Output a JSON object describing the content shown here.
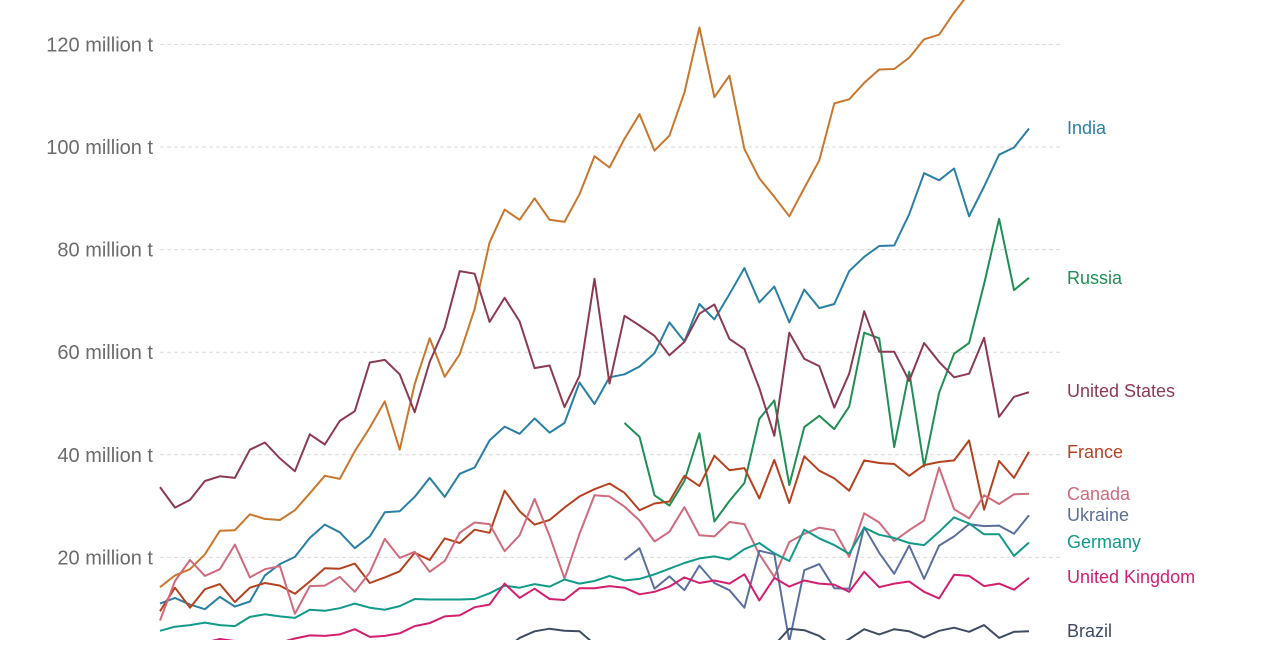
{
  "chart_data": {
    "type": "line",
    "x_range": [
      1961,
      2021
    ],
    "ylim": [
      0,
      125
    ],
    "y_ticks": [
      {
        "value": 20,
        "label": "20 million t"
      },
      {
        "value": 40,
        "label": "40 million t"
      },
      {
        "value": 60,
        "label": "60 million t"
      },
      {
        "value": 80,
        "label": "80 million t"
      },
      {
        "value": 100,
        "label": "100 million t"
      },
      {
        "value": 120,
        "label": "120 million t"
      }
    ],
    "grid": true,
    "series": [
      {
        "key": "china",
        "color": "#c9772c",
        "start": 1961,
        "values": [
          14.2,
          16.5,
          17.7,
          20.6,
          25.2,
          25.3,
          28.4,
          27.5,
          27.3,
          29.2,
          32.5,
          35.9,
          35.3,
          40.7,
          45.3,
          50.4,
          41.0,
          53.8,
          62.7,
          55.2,
          59.6,
          68.4,
          81.4,
          87.8,
          85.8,
          90.0,
          85.8,
          85.4,
          90.8,
          98.2,
          96.0,
          101.6,
          106.4,
          99.3,
          102.2,
          110.6,
          123.3,
          109.7,
          113.9,
          99.6,
          93.9,
          90.3,
          86.5,
          92.0,
          97.4,
          108.5,
          109.3,
          112.5,
          115.1,
          115.2,
          117.4,
          121.0,
          121.9,
          126.2,
          130.0,
          133.3,
          134.3,
          131.4,
          133.6,
          134.3,
          137.0
        ]
      },
      {
        "key": "india",
        "name": "India",
        "color": "#2a7fa5",
        "start": 1961,
        "values": [
          11.0,
          12.1,
          10.8,
          9.9,
          12.3,
          10.4,
          11.4,
          16.5,
          18.7,
          20.1,
          23.8,
          26.4,
          24.9,
          21.8,
          24.1,
          28.8,
          29.0,
          31.8,
          35.5,
          31.8,
          36.3,
          37.5,
          42.8,
          45.5,
          44.1,
          47.1,
          44.3,
          46.2,
          54.1,
          49.9,
          55.1,
          55.7,
          57.2,
          59.8,
          65.8,
          62.1,
          69.4,
          66.4,
          71.3,
          76.4,
          69.7,
          72.8,
          65.8,
          72.2,
          68.6,
          69.4,
          75.8,
          78.6,
          80.7,
          80.8,
          86.9,
          94.9,
          93.5,
          95.8,
          86.5,
          92.3,
          98.5,
          99.9,
          103.6
        ]
      },
      {
        "key": "russia",
        "name": "Russia",
        "color": "#1f8f54",
        "start": 1992,
        "values": [
          46.2,
          43.5,
          32.1,
          30.1,
          34.9,
          44.2,
          27.0,
          31.0,
          34.5,
          47.0,
          50.6,
          34.1,
          45.4,
          47.6,
          45.0,
          49.4,
          63.8,
          62.7,
          41.5,
          56.2,
          37.7,
          52.1,
          59.7,
          61.8,
          73.3,
          86.0,
          72.1,
          74.5
        ]
      },
      {
        "key": "usa",
        "name": "United States",
        "color": "#8b3a52",
        "start": 1961,
        "values": [
          33.7,
          29.7,
          31.2,
          34.9,
          35.8,
          35.5,
          41.0,
          42.4,
          39.3,
          36.8,
          44.0,
          42.0,
          46.6,
          48.5,
          58.0,
          58.5,
          55.7,
          48.3,
          58.1,
          64.8,
          75.8,
          75.3,
          65.9,
          70.6,
          66.0,
          56.9,
          57.4,
          49.3,
          55.4,
          74.3,
          53.9,
          67.1,
          65.2,
          63.2,
          59.4,
          62.0,
          67.5,
          69.3,
          62.6,
          60.6,
          53.0,
          43.7,
          63.8,
          58.7,
          57.3,
          49.2,
          55.8,
          68.0,
          60.1,
          60.1,
          54.4,
          61.8,
          58.1,
          55.1,
          55.8,
          62.8,
          47.4,
          51.3,
          52.2
        ]
      },
      {
        "key": "france",
        "name": "France",
        "color": "#b5421e",
        "start": 1961,
        "values": [
          9.5,
          14.1,
          10.2,
          13.8,
          14.8,
          11.3,
          14.1,
          15.0,
          14.5,
          12.9,
          15.3,
          17.9,
          17.8,
          18.8,
          15.0,
          16.1,
          17.3,
          20.9,
          19.5,
          23.7,
          22.8,
          25.4,
          24.8,
          33.0,
          29.0,
          26.4,
          27.3,
          29.7,
          31.9,
          33.3,
          34.4,
          32.6,
          29.2,
          30.5,
          30.9,
          35.9,
          33.9,
          39.8,
          37.0,
          37.4,
          31.5,
          39.0,
          30.6,
          39.7,
          36.9,
          35.4,
          33.0,
          38.9,
          38.4,
          38.2,
          35.9,
          38.0,
          38.6,
          38.9,
          42.8,
          29.3,
          38.8,
          35.5,
          40.6
        ]
      },
      {
        "key": "canada",
        "name": "Canada",
        "color": "#d06a7d",
        "start": 1961,
        "values": [
          7.7,
          15.4,
          19.5,
          16.4,
          17.7,
          22.5,
          16.1,
          17.7,
          18.3,
          9.0,
          14.4,
          14.5,
          16.2,
          13.3,
          17.1,
          23.6,
          19.9,
          21.1,
          17.2,
          19.3,
          24.8,
          26.8,
          26.5,
          21.2,
          24.3,
          31.4,
          24.2,
          15.9,
          24.6,
          32.1,
          31.9,
          29.9,
          27.2,
          23.1,
          25.0,
          29.8,
          24.3,
          24.1,
          26.9,
          26.5,
          20.6,
          16.2,
          23.0,
          24.6,
          25.8,
          25.3,
          20.1,
          28.6,
          26.8,
          23.2,
          25.3,
          27.2,
          37.5,
          29.4,
          27.6,
          32.1,
          30.4,
          32.3,
          32.4
        ]
      },
      {
        "key": "ukraine",
        "name": "Ukraine",
        "color": "#5b6f9e",
        "start": 1992,
        "values": [
          19.5,
          21.8,
          13.9,
          16.3,
          13.6,
          18.4,
          15.0,
          13.6,
          10.2,
          21.3,
          20.6,
          3.6,
          17.5,
          18.7,
          14.0,
          13.9,
          25.9,
          20.9,
          16.8,
          22.3,
          15.8,
          22.3,
          24.1,
          26.5,
          26.1,
          26.2,
          24.6,
          28.2
        ]
      },
      {
        "key": "germany",
        "name": "Germany",
        "color": "#119a8a",
        "start": 1961,
        "values": [
          5.7,
          6.5,
          6.8,
          7.3,
          6.8,
          6.6,
          8.4,
          8.9,
          8.5,
          8.2,
          9.8,
          9.6,
          10.1,
          11.0,
          10.2,
          9.8,
          10.5,
          11.9,
          11.8,
          11.8,
          11.8,
          11.9,
          13.0,
          14.5,
          14.1,
          14.8,
          14.3,
          15.7,
          14.9,
          15.4,
          16.4,
          15.5,
          15.8,
          16.7,
          17.8,
          18.9,
          19.8,
          20.2,
          19.6,
          21.6,
          22.8,
          20.8,
          19.3,
          25.4,
          23.7,
          22.4,
          20.7,
          25.8,
          24.4,
          23.8,
          22.8,
          22.4,
          25.0,
          27.8,
          26.6,
          24.5,
          24.5,
          20.3,
          22.9
        ]
      },
      {
        "key": "uk",
        "name": "United Kingdom",
        "color": "#d21f6f",
        "start": 1961,
        "values": [
          2.5,
          3.2,
          3.1,
          3.4,
          4.1,
          3.7,
          3.4,
          3.5,
          3.4,
          4.2,
          4.8,
          4.7,
          5.0,
          6.0,
          4.5,
          4.7,
          5.2,
          6.6,
          7.2,
          8.5,
          8.7,
          10.3,
          10.8,
          14.9,
          12.1,
          13.9,
          11.9,
          11.7,
          14.0,
          14.0,
          14.4,
          14.1,
          12.8,
          13.3,
          14.3,
          16.1,
          15.0,
          15.5,
          14.9,
          16.7,
          11.6,
          16.0,
          14.3,
          15.5,
          14.9,
          14.7,
          13.3,
          17.2,
          14.2,
          14.9,
          15.3,
          13.3,
          12.0,
          16.6,
          16.4,
          14.4,
          14.9,
          13.7,
          16.0
        ]
      },
      {
        "key": "brazil",
        "name": "Brazil",
        "color": "#3f4b63",
        "start": 1961,
        "values": [
          0.5,
          0.4,
          0.6,
          0.6,
          0.6,
          0.6,
          0.7,
          0.8,
          1.0,
          1.8,
          2.0,
          0.8,
          2.0,
          2.8,
          1.8,
          3.2,
          2.1,
          2.7,
          2.9,
          2.7,
          2.2,
          1.8,
          2.2,
          2.0,
          4.3,
          5.6,
          6.1,
          5.7,
          5.6,
          3.1,
          3.1,
          2.8,
          2.2,
          2.1,
          1.5,
          3.2,
          2.5,
          2.2,
          2.4,
          1.7,
          3.2,
          2.9,
          6.1,
          5.8,
          4.7,
          2.5,
          4.1,
          6.0,
          5.0,
          6.0,
          5.6,
          4.4,
          5.7,
          6.3,
          5.5,
          6.8,
          4.3,
          5.5,
          5.6
        ]
      }
    ]
  }
}
